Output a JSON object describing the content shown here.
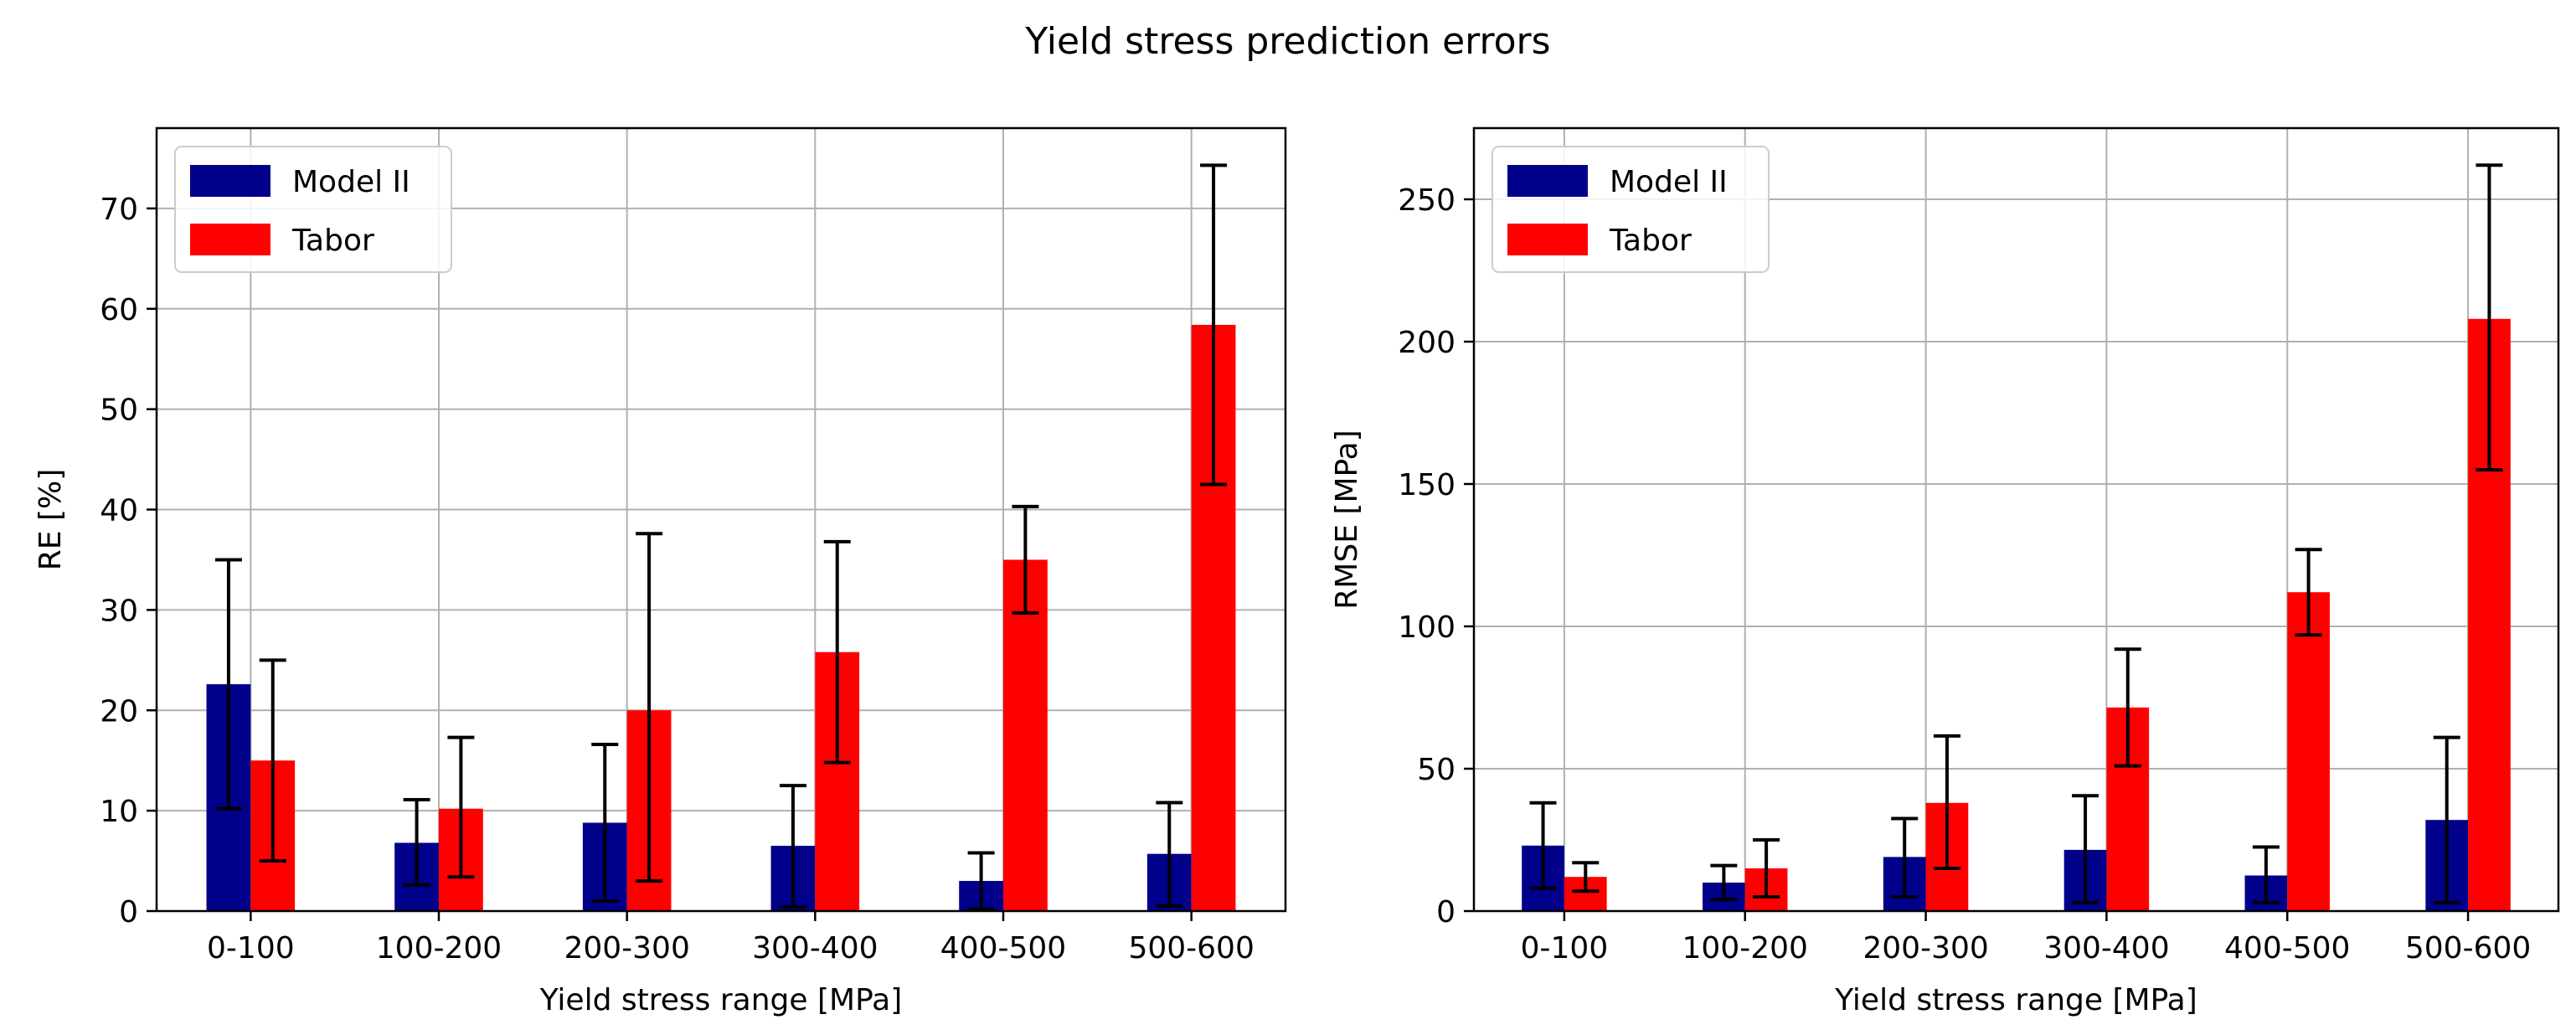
{
  "title": "Yield stress prediction errors",
  "colors": {
    "model": "#00008b",
    "tabor": "#ff0000",
    "grid": "#b0b0b0",
    "axis": "#000000"
  },
  "chart_data": [
    {
      "type": "bar",
      "categories": [
        "0-100",
        "100-200",
        "200-300",
        "300-400",
        "400-500",
        "500-600"
      ],
      "xlabel": "Yield stress range [MPa]",
      "ylabel": "RE [%]",
      "ylim": [
        0,
        78
      ],
      "yticks": [
        0,
        10,
        20,
        30,
        40,
        50,
        60,
        70
      ],
      "ytick_labels": [
        "0",
        "10",
        "20",
        "30",
        "40",
        "50",
        "60",
        "70"
      ],
      "grid": true,
      "legend": "top-left",
      "series": [
        {
          "name": "Model II",
          "values": [
            22.6,
            6.8,
            8.8,
            6.5,
            3.0,
            5.7
          ],
          "err_low": [
            10.2,
            2.6,
            1.0,
            0.4,
            0.2,
            0.5
          ],
          "err_high": [
            35.0,
            11.1,
            16.6,
            12.5,
            5.8,
            10.8
          ]
        },
        {
          "name": "Tabor",
          "values": [
            15.0,
            10.2,
            20.0,
            25.8,
            35.0,
            58.4
          ],
          "err_low": [
            5.0,
            3.4,
            3.0,
            14.8,
            29.7,
            42.5
          ],
          "err_high": [
            25.0,
            17.3,
            37.6,
            36.8,
            40.3,
            74.3
          ]
        }
      ]
    },
    {
      "type": "bar",
      "categories": [
        "0-100",
        "100-200",
        "200-300",
        "300-400",
        "400-500",
        "500-600"
      ],
      "xlabel": "Yield stress range [MPa]",
      "ylabel": "RMSE [MPa]",
      "ylim": [
        0,
        275
      ],
      "yticks": [
        0,
        50,
        100,
        150,
        200,
        250
      ],
      "ytick_labels": [
        "0",
        "50",
        "100",
        "150",
        "200",
        "250"
      ],
      "grid": true,
      "legend": "top-left",
      "series": [
        {
          "name": "Model II",
          "values": [
            23,
            10,
            19,
            21.5,
            12.5,
            32
          ],
          "err_low": [
            8,
            4,
            5,
            3,
            3,
            3
          ],
          "err_high": [
            38,
            16,
            32.5,
            40.5,
            22.5,
            61
          ]
        },
        {
          "name": "Tabor",
          "values": [
            12,
            15,
            38,
            71.5,
            112,
            208
          ],
          "err_low": [
            7,
            5,
            15,
            51,
            97,
            155
          ],
          "err_high": [
            17,
            25,
            61.5,
            92,
            127,
            262
          ]
        }
      ]
    }
  ]
}
